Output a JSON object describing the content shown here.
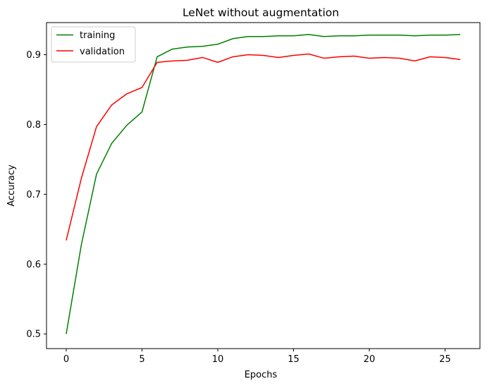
{
  "chart_data": {
    "type": "line",
    "title": "LeNet without augmentation",
    "xlabel": "Epochs",
    "ylabel": "Accuracy",
    "xlim": [
      -1.3,
      27.3
    ],
    "ylim": [
      0.479,
      0.946
    ],
    "xticks": [
      0,
      5,
      10,
      15,
      20,
      25
    ],
    "yticks": [
      0.5,
      0.6,
      0.7,
      0.8,
      0.9
    ],
    "x": [
      0,
      1,
      2,
      3,
      4,
      5,
      6,
      7,
      8,
      9,
      10,
      11,
      12,
      13,
      14,
      15,
      16,
      17,
      18,
      19,
      20,
      21,
      22,
      23,
      24,
      25,
      26
    ],
    "legend_position": "top-left",
    "grid": false,
    "series": [
      {
        "name": "training",
        "color": "#008000",
        "values": [
          0.5,
          0.628,
          0.729,
          0.773,
          0.799,
          0.818,
          0.897,
          0.908,
          0.911,
          0.912,
          0.915,
          0.923,
          0.926,
          0.926,
          0.927,
          0.927,
          0.929,
          0.926,
          0.927,
          0.927,
          0.928,
          0.928,
          0.928,
          0.927,
          0.928,
          0.928,
          0.929
        ]
      },
      {
        "name": "validation",
        "color": "#ff0000",
        "values": [
          0.634,
          0.723,
          0.797,
          0.828,
          0.844,
          0.853,
          0.889,
          0.891,
          0.892,
          0.896,
          0.889,
          0.897,
          0.9,
          0.899,
          0.896,
          0.899,
          0.901,
          0.895,
          0.897,
          0.898,
          0.895,
          0.896,
          0.895,
          0.891,
          0.897,
          0.896,
          0.893
        ]
      }
    ]
  }
}
